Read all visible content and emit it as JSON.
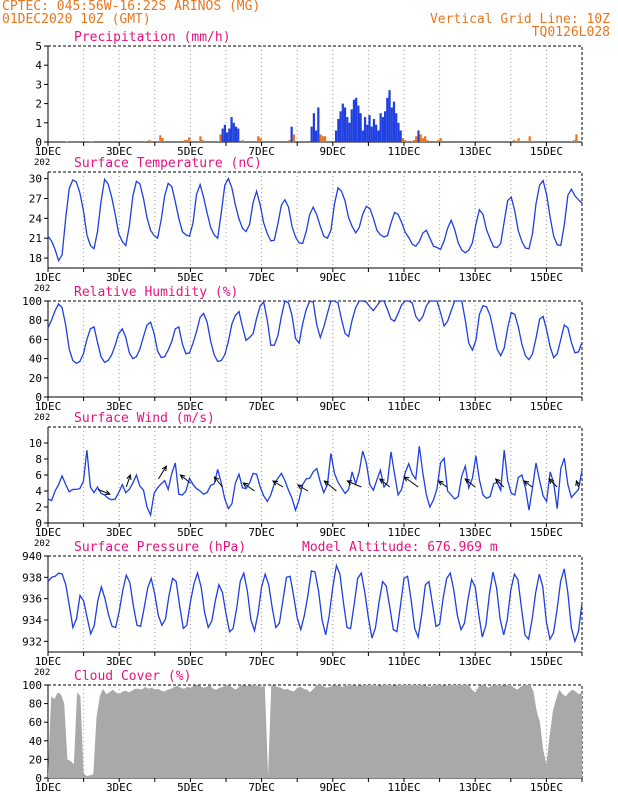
{
  "header": {
    "line1_left": "CPTEC:   045:56W-16:22S  ARINOS (MG)",
    "line2_left": "01DEC2020 10Z (GMT)",
    "line1_right": "Vertical Grid Line: 10Z",
    "line2_right": "TQ0126L028"
  },
  "colors": {
    "header": "#e8761e",
    "panel_title": "#e8117f",
    "series_line": "#1f3fe0",
    "precip_bars": "#1f3fe0",
    "precip_low_bars": "#e8761e",
    "cloud_fill": "#a9a9a9",
    "wind_arrows": "#000000",
    "grid": "#9a9a9a"
  },
  "x_axis": {
    "tick_labels": [
      "1DEC",
      "3DEC",
      "5DEC",
      "7DEC",
      "9DEC",
      "11DEC",
      "13DEC",
      "15DEC"
    ],
    "overflow_label": "202",
    "days_shown": 15
  },
  "chart_data": [
    {
      "type": "bar",
      "title": "Precipitation (mm/h)",
      "ylim": [
        0,
        5
      ],
      "yticks": [
        0,
        1,
        2,
        3,
        4,
        5
      ],
      "grid": true,
      "series": [
        {
          "values": [
            0,
            0,
            0,
            0,
            0,
            0,
            0,
            0,
            0.02,
            0,
            0,
            0,
            0,
            0,
            0,
            0,
            0,
            0,
            0.05,
            0.02,
            0,
            0,
            0,
            0,
            0,
            0,
            0,
            0,
            0,
            0,
            0,
            0,
            0,
            0,
            0,
            0,
            0,
            0.05,
            0,
            0,
            0,
            0,
            0,
            0.05,
            0,
            0.1,
            0,
            0,
            0,
            0.05,
            0.35,
            0.2,
            0,
            0,
            0,
            0,
            0,
            0.05,
            0,
            0,
            0,
            0.1,
            0.1,
            0.25,
            0,
            0,
            0,
            0,
            0.3,
            0.1,
            0,
            0,
            0,
            0,
            0,
            0,
            0.05,
            0.4,
            0.7,
            0.9,
            0.5,
            0.7,
            1.3,
            1.0,
            0.8,
            0.7,
            0,
            0.1,
            0,
            0,
            0,
            0,
            0,
            0,
            0.3,
            0.2,
            0,
            0,
            0,
            0,
            0,
            0,
            0,
            0,
            0,
            0,
            0,
            0,
            0.1,
            0.8,
            0.4,
            0,
            0,
            0,
            0,
            0,
            0,
            0,
            0.8,
            1.5,
            0.6,
            1.8,
            0.4,
            0.3,
            0.3,
            0,
            0,
            0,
            0,
            0.6,
            1.2,
            1.6,
            2.0,
            1.8,
            1.3,
            1.0,
            1.7,
            2.2,
            2.3,
            1.9,
            1.5,
            0.6,
            1.3,
            0.9,
            1.4,
            0.8,
            1.2,
            0.9,
            0.6,
            1.5,
            1.3,
            1.6,
            2.3,
            2.7,
            1.8,
            2.1,
            1.5,
            1.0,
            0.6,
            0.2,
            0.1,
            0.05,
            0,
            0.05,
            0.1,
            0.3,
            0.6,
            0.4,
            0.2,
            0.3,
            0.1,
            0,
            0,
            0,
            0,
            0.1,
            0.2,
            0,
            0,
            0,
            0,
            0,
            0,
            0,
            0,
            0,
            0,
            0,
            0,
            0,
            0.05,
            0,
            0,
            0,
            0,
            0,
            0,
            0,
            0,
            0,
            0,
            0,
            0,
            0,
            0,
            0,
            0,
            0,
            0,
            0.1,
            0,
            0.2,
            0,
            0,
            0.05,
            0,
            0.3,
            0,
            0,
            0,
            0,
            0,
            0,
            0,
            0,
            0,
            0,
            0,
            0,
            0,
            0,
            0,
            0,
            0,
            0,
            0.05,
            0.1,
            0.4,
            0,
            0
          ]
        }
      ]
    },
    {
      "type": "line",
      "title": "Surface Temperature (nC)",
      "ylim": [
        16.5,
        31
      ],
      "yticks": [
        18,
        21,
        24,
        27,
        30
      ],
      "grid": true,
      "series": [
        {
          "values": [
            21.3,
            20.6,
            19.3,
            17.6,
            18.5,
            24.0,
            28.5,
            29.8,
            29.5,
            27.9,
            25.2,
            21.5,
            19.9,
            19.4,
            22.0,
            26.5,
            29.9,
            29.2,
            27.2,
            24.6,
            21.7,
            20.5,
            19.9,
            22.8,
            27.4,
            29.6,
            29.2,
            27.0,
            24.1,
            22.2,
            21.4,
            21.0,
            23.8,
            27.4,
            29.3,
            28.8,
            26.5,
            24.0,
            22.0,
            21.5,
            21.3,
            23.3,
            27.6,
            29.1,
            27.2,
            24.8,
            22.6,
            21.5,
            21.0,
            24.9,
            29.0,
            30.0,
            28.6,
            26.0,
            23.9,
            22.5,
            22.0,
            23.1,
            26.4,
            28.1,
            26.0,
            23.3,
            21.7,
            20.6,
            20.7,
            23.2,
            26.0,
            26.8,
            25.7,
            22.8,
            21.2,
            20.3,
            20.2,
            22.0,
            24.6,
            25.7,
            24.5,
            22.8,
            21.3,
            21.0,
            22.2,
            26.2,
            28.6,
            28.1,
            26.6,
            24.1,
            22.8,
            21.8,
            22.6,
            24.6,
            25.8,
            25.5,
            24.0,
            22.2,
            21.5,
            21.2,
            21.4,
            23.3,
            24.9,
            24.6,
            23.4,
            21.9,
            21.1,
            20.1,
            19.8,
            20.5,
            21.8,
            22.2,
            21.0,
            19.8,
            19.6,
            19.3,
            20.6,
            22.5,
            23.7,
            22.3,
            20.3,
            19.2,
            18.8,
            19.2,
            20.3,
            23.1,
            25.3,
            24.6,
            22.3,
            20.9,
            19.7,
            19.6,
            20.2,
            23.5,
            26.7,
            27.2,
            25.1,
            22.1,
            20.5,
            19.5,
            19.4,
            21.7,
            26.2,
            29.0,
            29.7,
            27.6,
            24.1,
            21.3,
            20.0,
            19.9,
            23.0,
            27.5,
            28.4,
            27.4,
            26.8,
            26.3
          ]
        }
      ]
    },
    {
      "type": "line",
      "title": "Relative Humidity (%)",
      "ylim": [
        0,
        100
      ],
      "yticks": [
        0,
        20,
        40,
        60,
        80,
        100
      ],
      "grid": true,
      "series": [
        {
          "values": [
            72,
            80,
            90,
            97,
            93,
            75,
            50,
            38,
            35,
            37,
            45,
            60,
            71,
            73,
            57,
            42,
            36,
            38,
            44,
            54,
            66,
            71,
            62,
            46,
            40,
            42,
            50,
            63,
            75,
            78,
            66,
            48,
            41,
            42,
            49,
            58,
            71,
            73,
            55,
            45,
            46,
            56,
            68,
            83,
            87,
            78,
            58,
            44,
            37,
            38,
            44,
            58,
            76,
            85,
            89,
            73,
            59,
            62,
            66,
            82,
            95,
            99,
            80,
            54,
            54,
            64,
            84,
            100,
            98,
            85,
            61,
            56,
            76,
            91,
            100,
            99,
            75,
            62,
            73,
            87,
            100,
            100,
            98,
            81,
            66,
            63,
            80,
            93,
            100,
            100,
            99,
            94,
            90,
            95,
            100,
            100,
            91,
            81,
            79,
            87,
            96,
            100,
            100,
            98,
            84,
            79,
            84,
            95,
            100,
            100,
            100,
            88,
            74,
            79,
            90,
            100,
            100,
            100,
            80,
            56,
            49,
            59,
            86,
            95,
            94,
            85,
            68,
            50,
            43,
            51,
            72,
            88,
            86,
            73,
            55,
            43,
            39,
            45,
            61,
            81,
            84,
            70,
            52,
            41,
            45,
            60,
            75,
            72,
            57,
            46,
            47,
            57
          ]
        }
      ]
    },
    {
      "type": "line",
      "title": "Surface Wind (m/s)",
      "ylim": [
        0,
        12
      ],
      "yticks": [
        0,
        2,
        4,
        6,
        8,
        10
      ],
      "grid": true,
      "series": [
        {
          "values": [
            3.0,
            2.8,
            4.0,
            4.8,
            5.9,
            4.8,
            3.9,
            4.2,
            4.2,
            4.3,
            5.2,
            9.1,
            4.5,
            3.8,
            4.5,
            3.7,
            3.5,
            3.1,
            2.9,
            3.0,
            3.8,
            4.8,
            3.8,
            4.2,
            5.0,
            6.0,
            4.6,
            4.1,
            2.0,
            1.0,
            3.7,
            4.4,
            4.9,
            5.3,
            4.2,
            6.2,
            7.5,
            3.6,
            3.5,
            4.0,
            5.6,
            4.8,
            4.3,
            4.0,
            3.6,
            3.8,
            4.7,
            4.9,
            6.7,
            5.0,
            3.0,
            1.8,
            2.4,
            5.0,
            6.1,
            4.4,
            4.3,
            5.0,
            6.2,
            6.1,
            4.5,
            3.4,
            2.7,
            3.5,
            4.9,
            5.6,
            6.2,
            5.3,
            4.1,
            3.1,
            1.6,
            2.9,
            4.8,
            5.5,
            5.6,
            6.4,
            6.8,
            5.1,
            3.8,
            4.8,
            8.7,
            6.2,
            5.1,
            4.4,
            3.7,
            4.2,
            6.4,
            4.9,
            6.4,
            9.0,
            7.5,
            4.8,
            4.1,
            5.4,
            6.6,
            4.5,
            5.1,
            8.9,
            6.1,
            3.5,
            4.2,
            6.3,
            7.4,
            6.1,
            5.5,
            9.6,
            6.2,
            3.5,
            2.0,
            2.9,
            4.3,
            7.5,
            8.1,
            4.0,
            3.5,
            3.0,
            3.3,
            5.9,
            7.1,
            4.4,
            5.6,
            8.4,
            5.4,
            3.5,
            3.1,
            3.3,
            4.9,
            5.1,
            4.1,
            9.1,
            5.3,
            3.7,
            3.5,
            5.7,
            6.0,
            4.4,
            1.6,
            4.4,
            7.5,
            5.3,
            3.4,
            2.7,
            6.4,
            5.0,
            1.8,
            6.8,
            8.1,
            4.8,
            3.2,
            3.7,
            4.2,
            6.6
          ]
        }
      ]
    },
    {
      "type": "line",
      "title": "Surface Pressure (hPa)",
      "annotation": "Model Altitude: 676.969 m",
      "ylim": [
        931,
        940
      ],
      "yticks": [
        932,
        934,
        936,
        938,
        940
      ],
      "grid": true,
      "series": [
        {
          "values": [
            937.6,
            938.0,
            938.1,
            938.4,
            938.3,
            937.3,
            935.3,
            933.3,
            934.1,
            936.3,
            935.8,
            934.2,
            932.7,
            933.5,
            935.8,
            937.1,
            936.0,
            934.5,
            933.4,
            933.3,
            934.8,
            936.8,
            938.2,
            937.5,
            935.3,
            933.5,
            933.4,
            935.1,
            937.0,
            937.9,
            936.4,
            934.4,
            933.5,
            934.1,
            936.3,
            937.9,
            937.6,
            935.3,
            933.2,
            933.5,
            935.7,
            937.4,
            938.4,
            937.1,
            934.7,
            933.3,
            933.9,
            935.8,
            937.3,
            936.6,
            934.6,
            932.9,
            933.2,
            935.1,
            937.6,
            938.4,
            936.7,
            934.0,
            933.0,
            934.6,
            937.1,
            938.3,
            937.3,
            935.1,
            933.3,
            933.7,
            935.9,
            938.0,
            938.1,
            936.3,
            934.2,
            933.1,
            934.4,
            936.3,
            938.6,
            938.5,
            936.7,
            934.0,
            932.6,
            934.4,
            937.1,
            939.1,
            938.3,
            935.6,
            933.3,
            933.2,
            935.5,
            937.9,
            938.4,
            936.6,
            934.2,
            932.3,
            933.3,
            935.7,
            937.6,
            937.2,
            935.2,
            933.1,
            932.9,
            935.3,
            937.9,
            938.1,
            935.9,
            933.2,
            932.4,
            934.6,
            937.3,
            937.6,
            935.5,
            933.4,
            933.6,
            936.1,
            937.9,
            938.4,
            936.8,
            934.4,
            933.1,
            933.7,
            936.0,
            937.8,
            937.1,
            934.5,
            932.4,
            933.5,
            936.4,
            938.5,
            937.0,
            934.1,
            932.6,
            934.0,
            936.8,
            938.3,
            937.8,
            935.1,
            932.6,
            932.2,
            934.1,
            936.6,
            938.3,
            937.1,
            933.8,
            932.2,
            932.8,
            935.0,
            937.6,
            938.8,
            936.6,
            933.3,
            932.0,
            932.9,
            935.6
          ]
        }
      ]
    },
    {
      "type": "area",
      "title": "Cloud Cover (%)",
      "ylim": [
        0,
        100
      ],
      "yticks": [
        0,
        20,
        40,
        60,
        80,
        100
      ],
      "grid": true,
      "series": [
        {
          "values": [
            5,
            88,
            85,
            92,
            90,
            80,
            20,
            18,
            15,
            92,
            88,
            5,
            2,
            3,
            4,
            65,
            88,
            96,
            90,
            92,
            95,
            92,
            90,
            93,
            94,
            92,
            94,
            96,
            96,
            95,
            98,
            96,
            97,
            95,
            96,
            94,
            93,
            95,
            96,
            98,
            99,
            97,
            96,
            98,
            97,
            99,
            100,
            99,
            97,
            98,
            100,
            96,
            95,
            97,
            98,
            99,
            100,
            97,
            95,
            98,
            100,
            99,
            99,
            100,
            100,
            99,
            98,
            99,
            3,
            100,
            99,
            98,
            97,
            95,
            96,
            94,
            93,
            97,
            98,
            96,
            95,
            92,
            96,
            100,
            100,
            99,
            97,
            98,
            99,
            100,
            99,
            98,
            99,
            100,
            100,
            99,
            99,
            100,
            100,
            100,
            100,
            100,
            99,
            100,
            100,
            100,
            100,
            99,
            100,
            100,
            100,
            100,
            100,
            100,
            100,
            100,
            100,
            99,
            98,
            100,
            100,
            100,
            100,
            99,
            100,
            100,
            100,
            100,
            100,
            100,
            100,
            95,
            92,
            98,
            100,
            100,
            97,
            99,
            100,
            100,
            100,
            99,
            100,
            100,
            97,
            95,
            98,
            100,
            100,
            100,
            93,
            72,
            60,
            30,
            15,
            45,
            72,
            85,
            95,
            90,
            88,
            92,
            95,
            93,
            90,
            92
          ]
        }
      ]
    }
  ]
}
